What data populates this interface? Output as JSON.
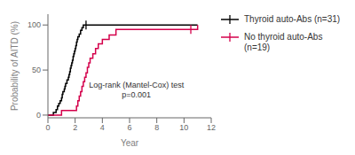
{
  "chart_data": {
    "type": "step",
    "xlabel": "Year",
    "ylabel": "Probability of AITD (%)",
    "xlim": [
      0,
      12
    ],
    "ylim": [
      -3,
      112
    ],
    "xticks": [
      0,
      2,
      4,
      6,
      8,
      10,
      12
    ],
    "yticks": [
      0,
      50,
      100
    ],
    "grid": false,
    "legend": "right",
    "marker": "|",
    "series": [
      {
        "name": "Thyroid auto-Abs (n=31)",
        "color": "#000000",
        "x": [
          0,
          0.4,
          0.6,
          0.7,
          0.8,
          0.9,
          1.0,
          1.05,
          1.1,
          1.2,
          1.25,
          1.3,
          1.4,
          1.5,
          1.55,
          1.6,
          1.65,
          1.7,
          1.75,
          1.8,
          1.85,
          1.9,
          1.95,
          2.0,
          2.05,
          2.1,
          2.15,
          2.2,
          2.3,
          2.4,
          2.5,
          2.6,
          2.7,
          2.8,
          11.0
        ],
        "values": [
          0,
          3,
          6,
          10,
          13,
          16,
          19,
          23,
          26,
          29,
          32,
          35,
          39,
          42,
          45,
          48,
          52,
          55,
          58,
          61,
          65,
          68,
          71,
          74,
          77,
          81,
          84,
          87,
          90,
          94,
          97,
          100,
          100,
          100,
          100
        ],
        "censor_x": [
          2.8
        ],
        "censor_values": [
          100
        ]
      },
      {
        "name": "No thyroid auto-Abs\n(n=19)",
        "color": "#d4004b",
        "x": [
          0,
          0.5,
          1.0,
          1.5,
          2.0,
          2.1,
          2.2,
          2.3,
          2.4,
          2.5,
          2.6,
          2.7,
          2.8,
          2.9,
          3.0,
          3.1,
          3.3,
          3.5,
          3.7,
          4.0,
          4.5,
          5.0,
          10.5,
          11.0
        ],
        "values": [
          0,
          0,
          5,
          5,
          5,
          10,
          16,
          21,
          26,
          32,
          37,
          42,
          47,
          53,
          58,
          63,
          68,
          74,
          79,
          84,
          89,
          95,
          95,
          100
        ],
        "censor_x": [
          10.5
        ],
        "censor_values": [
          95
        ]
      }
    ],
    "annotations": [
      {
        "text": "Log-rank (Mantel-Cox) test\np=0.001",
        "x": 6.5,
        "y": 28
      }
    ]
  }
}
